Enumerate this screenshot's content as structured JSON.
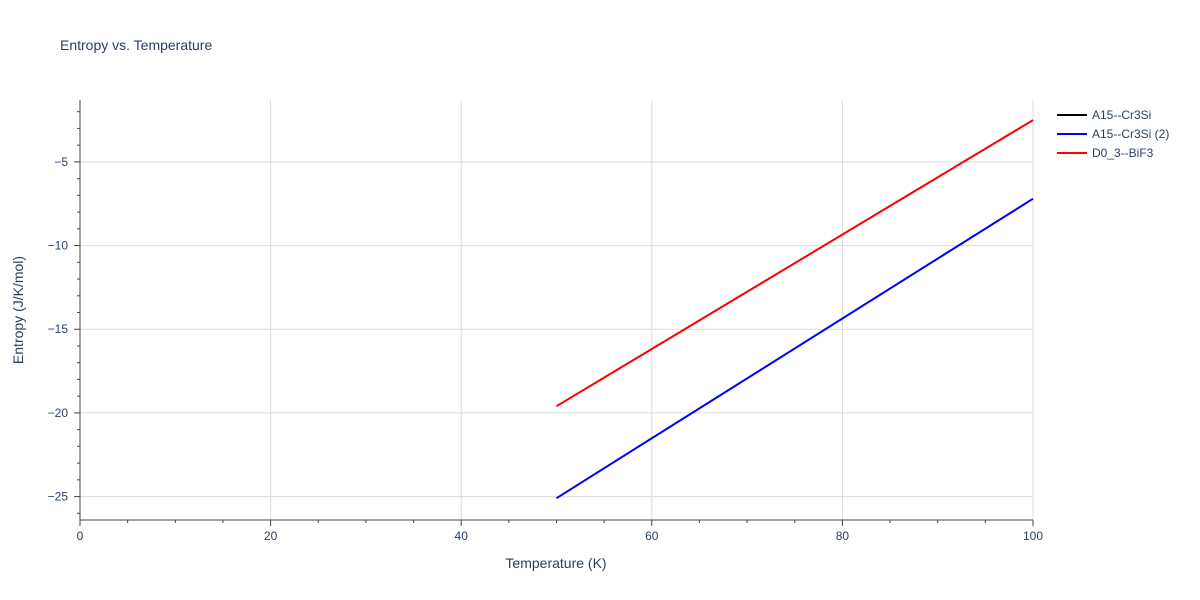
{
  "chart_data": {
    "type": "line",
    "title": "Entropy vs. Temperature",
    "xlabel": "Temperature (K)",
    "ylabel": "Entropy (J/K/mol)",
    "xlim": [
      0,
      100
    ],
    "ylim": [
      -26.4,
      -1.3
    ],
    "x_ticks": [
      0,
      20,
      40,
      60,
      80,
      100
    ],
    "y_ticks": [
      -25,
      -20,
      -15,
      -10,
      -5
    ],
    "x_tick_labels": [
      "0",
      "20",
      "40",
      "60",
      "80",
      "100"
    ],
    "y_tick_labels": [
      "−25",
      "−20",
      "−15",
      "−10",
      "−5"
    ],
    "grid": true,
    "legend_position": "top-right",
    "series": [
      {
        "name": "A15--Cr3Si",
        "color": "#000000",
        "x": [],
        "y": []
      },
      {
        "name": "A15--Cr3Si (2)",
        "color": "#0000ff",
        "x": [
          50,
          100
        ],
        "y": [
          -25.1,
          -7.2
        ]
      },
      {
        "name": "D0_3--BiF3",
        "color": "#ff0000",
        "x": [
          50,
          100
        ],
        "y": [
          -19.6,
          -2.5
        ]
      }
    ]
  }
}
